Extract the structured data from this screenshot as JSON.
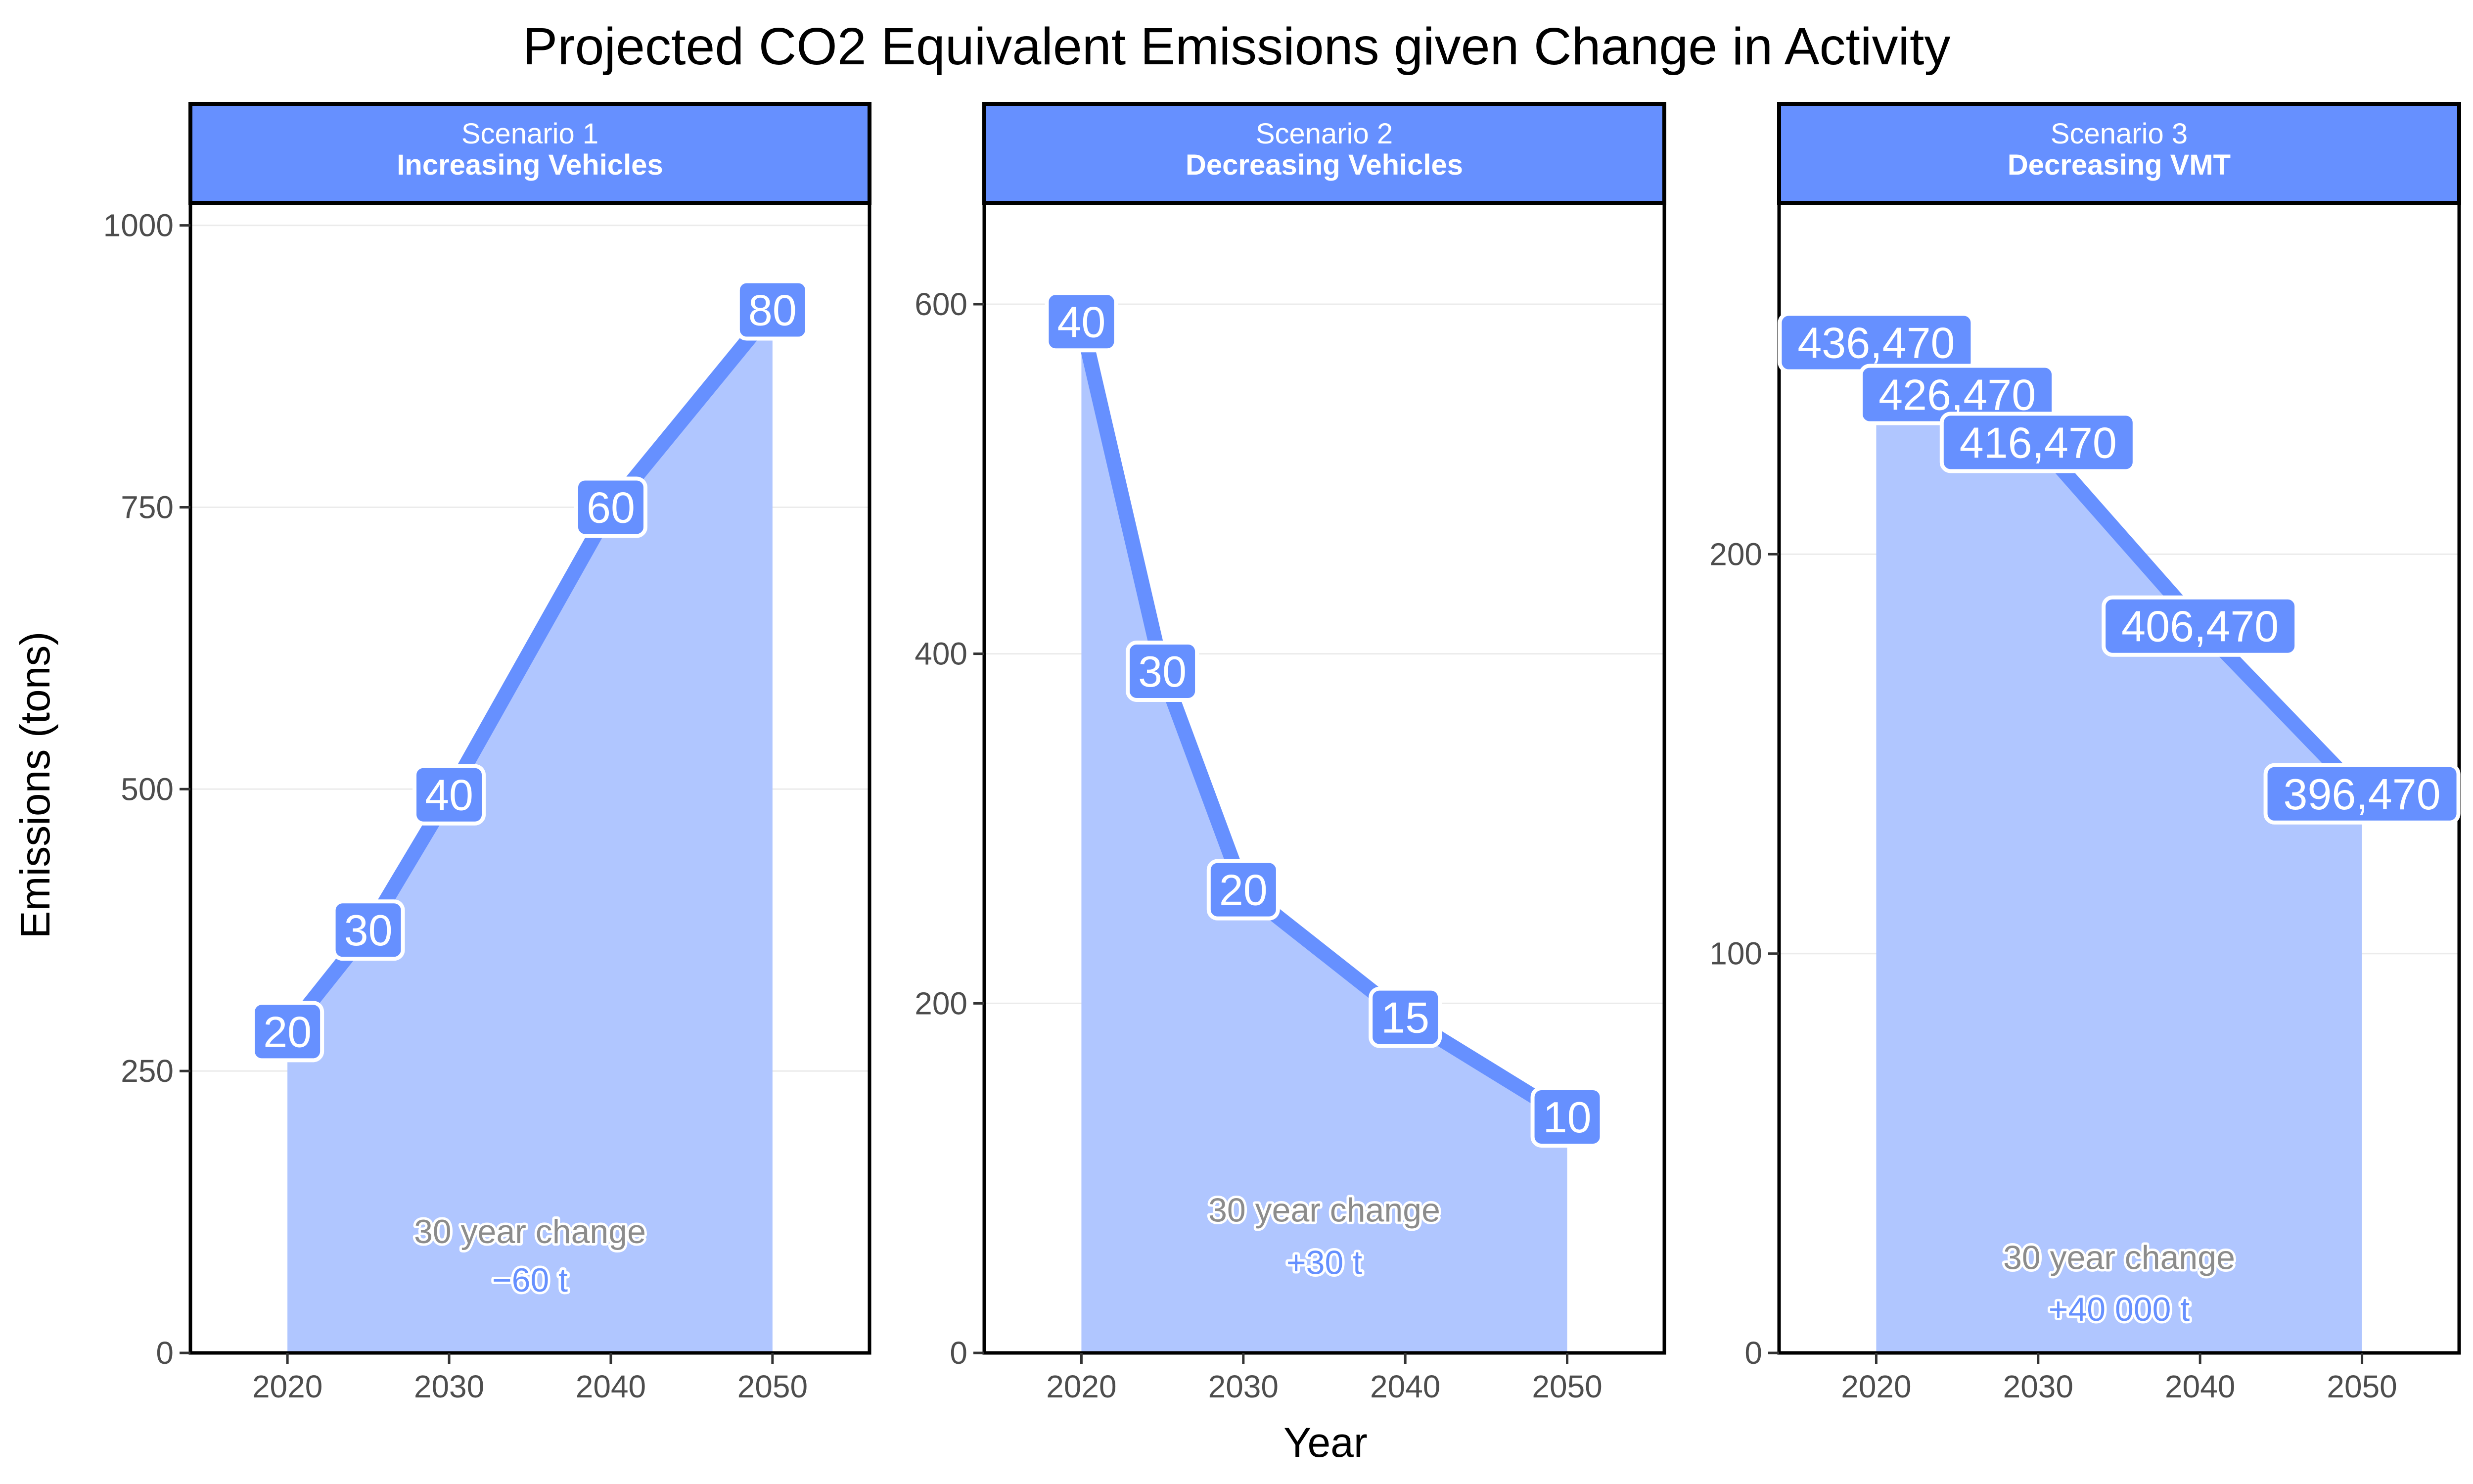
{
  "title": "Projected CO2 Equivalent Emissions given Change in Activity",
  "x_axis_title": "Year",
  "y_axis_title": "Emissions (tons)",
  "colors": {
    "line": "#6690FF",
    "area": "#B0C6FF",
    "strip": "#6690FF",
    "label_box": "#6690FF",
    "annot_title": "#8c8c8c",
    "annot_value": "#6690FF",
    "grid": "#ebebeb"
  },
  "chart_data": [
    {
      "type": "area",
      "strip_line1": "Scenario 1",
      "strip_line2": "Increasing Vehicles",
      "x": [
        2020,
        2025,
        2030,
        2040,
        2050
      ],
      "y": [
        285,
        375,
        495,
        750,
        925
      ],
      "point_labels": [
        "20",
        "30",
        "40",
        "60",
        "80"
      ],
      "xlim": [
        2014,
        2056
      ],
      "ylim": [
        0,
        1020
      ],
      "x_ticks": [
        2020,
        2030,
        2040,
        2050
      ],
      "y_ticks": [
        0,
        250,
        500,
        750,
        1000
      ],
      "y_tick_labels": [
        "0",
        "250",
        "500",
        "750",
        "1000"
      ],
      "annotation_title": "30 year change",
      "annotation_value": "−60 t",
      "annotation_y": [
        108,
        65
      ]
    },
    {
      "type": "area",
      "strip_line1": "Scenario 2",
      "strip_line2": "Decreasing Vehicles",
      "x": [
        2020,
        2025,
        2030,
        2040,
        2050
      ],
      "y": [
        590,
        390,
        265,
        192,
        135
      ],
      "point_labels": [
        "40",
        "30",
        "20",
        "15",
        "10"
      ],
      "xlim": [
        2014,
        2056
      ],
      "ylim": [
        0,
        658
      ],
      "x_ticks": [
        2020,
        2030,
        2040,
        2050
      ],
      "y_ticks": [
        0,
        200,
        400,
        600
      ],
      "y_tick_labels": [
        "0",
        "200",
        "400",
        "600"
      ],
      "annotation_title": "30 year change",
      "annotation_value": "+30 t",
      "annotation_y": [
        82,
        52
      ]
    },
    {
      "type": "area",
      "strip_line1": "Scenario 3",
      "strip_line2": "Decreasing VMT",
      "x": [
        2020,
        2025,
        2030,
        2040,
        2050
      ],
      "y": [
        253,
        240,
        228,
        182,
        140
      ],
      "point_labels": [
        "436,470",
        "426,470",
        "416,470",
        "406,470",
        "396,470"
      ],
      "xlim": [
        2014,
        2056
      ],
      "ylim": [
        0,
        288
      ],
      "x_ticks": [
        2020,
        2030,
        2040,
        2050
      ],
      "y_ticks": [
        0,
        100,
        200
      ],
      "y_tick_labels": [
        "0",
        "100",
        "200"
      ],
      "annotation_title": "30 year change",
      "annotation_value": "+40 000 t",
      "annotation_y": [
        24,
        11
      ]
    }
  ]
}
